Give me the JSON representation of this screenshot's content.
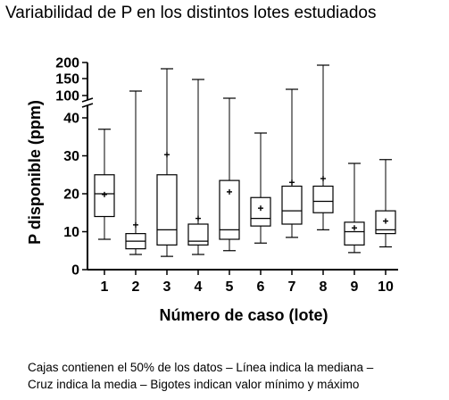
{
  "chart_data": {
    "type": "boxplot",
    "title": "Variabilidad de P en los distintos lotes estudiados",
    "xlabel": "Número de caso (lote)",
    "ylabel": "P disponible (ppm)",
    "y_scale": "piecewise-linear with axis break above 40",
    "y_ticks_lower": [
      0,
      10,
      20,
      30,
      40
    ],
    "y_ticks_upper": [
      100,
      150,
      200
    ],
    "categories": [
      "1",
      "2",
      "3",
      "4",
      "5",
      "6",
      "7",
      "8",
      "9",
      "10"
    ],
    "boxes": [
      {
        "case": "1",
        "min": 8,
        "q1": 14,
        "median": 20,
        "q3": 25,
        "max": 37,
        "mean": 19.8
      },
      {
        "case": "2",
        "min": 4,
        "q1": 5.5,
        "median": 7.5,
        "q3": 9.5,
        "max": 115,
        "mean": 11.8
      },
      {
        "case": "3",
        "min": 3.5,
        "q1": 6.5,
        "median": 10.5,
        "q3": 25,
        "max": 180,
        "mean": 30.3
      },
      {
        "case": "4",
        "min": 4,
        "q1": 6.5,
        "median": 7.5,
        "q3": 12,
        "max": 150,
        "mean": 13.5
      },
      {
        "case": "5",
        "min": 5,
        "q1": 8,
        "median": 10.5,
        "q3": 23.5,
        "max": 95,
        "mean": 20.5
      },
      {
        "case": "6",
        "min": 7,
        "q1": 11.5,
        "median": 13.5,
        "q3": 19,
        "max": 36,
        "mean": 16.2
      },
      {
        "case": "7",
        "min": 8.5,
        "q1": 12,
        "median": 15.5,
        "q3": 22,
        "max": 120,
        "mean": 23
      },
      {
        "case": "8",
        "min": 10.5,
        "q1": 15,
        "median": 18,
        "q3": 22,
        "max": 190,
        "mean": 24
      },
      {
        "case": "9",
        "min": 4.5,
        "q1": 6.5,
        "median": 10,
        "q3": 12.5,
        "max": 28,
        "mean": 11
      },
      {
        "case": "10",
        "min": 6,
        "q1": 9.5,
        "median": 10.5,
        "q3": 15.5,
        "max": 29,
        "mean": 12.8
      }
    ],
    "caption_lines": [
      "Cajas contienen el 50% de los datos – Línea indica la mediana –",
      "Cruz indica la media – Bigotes indican valor mínimo y máximo"
    ]
  }
}
